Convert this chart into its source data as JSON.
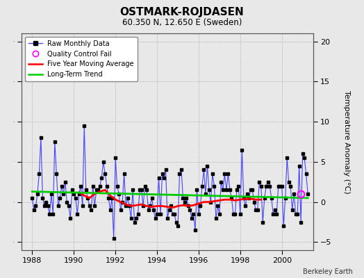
{
  "title": "OSTMARK-ROJDASEN",
  "subtitle": "60.350 N, 12.650 E (Sweden)",
  "ylabel": "Temperature Anomaly (°C)",
  "credit": "Berkeley Earth",
  "ylim": [
    -6,
    21
  ],
  "yticks": [
    -5,
    0,
    5,
    10,
    15,
    20
  ],
  "xlim": [
    1987.5,
    2001.5
  ],
  "xticks": [
    1988,
    1990,
    1992,
    1994,
    1996,
    1998,
    2000
  ],
  "raw_color": "#4444ff",
  "marker_color": "#000000",
  "moving_avg_color": "#ff0000",
  "trend_color": "#00cc00",
  "qc_fail_color": "#ff00ff",
  "background_color": "#e8e8e8",
  "raw_data": {
    "times": [
      1988.0,
      1988.083,
      1988.167,
      1988.25,
      1988.333,
      1988.417,
      1988.5,
      1988.583,
      1988.667,
      1988.75,
      1988.833,
      1988.917,
      1989.0,
      1989.083,
      1989.167,
      1989.25,
      1989.333,
      1989.417,
      1989.5,
      1989.583,
      1989.667,
      1989.75,
      1989.833,
      1989.917,
      1990.0,
      1990.083,
      1990.167,
      1990.25,
      1990.333,
      1990.417,
      1990.5,
      1990.583,
      1990.667,
      1990.75,
      1990.833,
      1990.917,
      1991.0,
      1991.083,
      1991.167,
      1991.25,
      1991.333,
      1991.417,
      1991.5,
      1991.583,
      1991.667,
      1991.75,
      1991.833,
      1991.917,
      1992.0,
      1992.083,
      1992.167,
      1992.25,
      1992.333,
      1992.417,
      1992.5,
      1992.583,
      1992.667,
      1992.75,
      1992.833,
      1992.917,
      1993.0,
      1993.083,
      1993.167,
      1993.25,
      1993.333,
      1993.417,
      1993.5,
      1993.583,
      1993.667,
      1993.75,
      1993.833,
      1993.917,
      1994.0,
      1994.083,
      1994.167,
      1994.25,
      1994.333,
      1994.417,
      1994.5,
      1994.583,
      1994.667,
      1994.75,
      1994.833,
      1994.917,
      1995.0,
      1995.083,
      1995.167,
      1995.25,
      1995.333,
      1995.417,
      1995.5,
      1995.583,
      1995.667,
      1995.75,
      1995.833,
      1995.917,
      1996.0,
      1996.083,
      1996.167,
      1996.25,
      1996.333,
      1996.417,
      1996.5,
      1996.583,
      1996.667,
      1996.75,
      1996.833,
      1996.917,
      1997.0,
      1997.083,
      1997.167,
      1997.25,
      1997.333,
      1997.417,
      1997.5,
      1997.583,
      1997.667,
      1997.75,
      1997.833,
      1997.917,
      1998.0,
      1998.083,
      1998.167,
      1998.25,
      1998.333,
      1998.417,
      1998.5,
      1998.583,
      1998.667,
      1998.75,
      1998.833,
      1998.917,
      1999.0,
      1999.083,
      1999.167,
      1999.25,
      1999.333,
      1999.417,
      1999.5,
      1999.583,
      1999.667,
      1999.75,
      1999.833,
      1999.917,
      2000.0,
      2000.083,
      2000.167,
      2000.25,
      2000.333,
      2000.417,
      2000.5,
      2000.583,
      2000.667,
      2000.75,
      2000.833,
      2000.917,
      2001.0,
      2001.083,
      2001.167,
      2001.25
    ],
    "values": [
      0.5,
      -1.0,
      -0.5,
      1.0,
      3.5,
      8.0,
      0.5,
      -0.5,
      0.0,
      -0.5,
      -1.5,
      1.0,
      -1.5,
      7.5,
      3.5,
      -0.5,
      0.5,
      2.0,
      1.0,
      2.5,
      0.0,
      -0.5,
      -2.0,
      1.5,
      1.0,
      0.5,
      -1.5,
      1.0,
      2.0,
      -0.5,
      9.5,
      1.5,
      0.5,
      -0.5,
      -1.0,
      2.0,
      -0.5,
      1.5,
      1.5,
      2.0,
      3.0,
      5.0,
      3.5,
      2.0,
      0.5,
      -1.0,
      0.5,
      -4.5,
      5.5,
      2.0,
      1.0,
      -1.0,
      0.0,
      3.5,
      -0.5,
      0.5,
      -0.5,
      -2.0,
      1.5,
      -2.5,
      -2.0,
      -1.5,
      1.5,
      1.5,
      -0.5,
      2.0,
      1.5,
      -1.0,
      -0.5,
      0.5,
      -1.0,
      -2.0,
      -1.5,
      3.0,
      -1.5,
      3.5,
      3.0,
      4.0,
      -2.0,
      -1.0,
      -0.5,
      -1.5,
      -1.5,
      -2.5,
      -3.0,
      3.5,
      4.0,
      0.5,
      0.0,
      0.5,
      -0.5,
      -1.0,
      -2.0,
      -1.5,
      -3.5,
      1.5,
      -1.5,
      -0.5,
      2.0,
      4.0,
      1.0,
      4.5,
      1.5,
      0.0,
      3.5,
      2.0,
      -2.0,
      -0.5,
      -1.5,
      2.5,
      1.5,
      3.5,
      1.5,
      3.5,
      1.5,
      0.5,
      -1.5,
      -1.5,
      1.5,
      2.0,
      -1.5,
      6.5,
      0.5,
      -0.5,
      1.0,
      0.5,
      1.5,
      1.5,
      0.0,
      -1.0,
      -1.0,
      2.5,
      2.0,
      -2.5,
      0.5,
      2.0,
      2.5,
      2.0,
      0.5,
      -1.5,
      -1.0,
      -1.5,
      2.0,
      2.0,
      2.0,
      -3.0,
      0.5,
      5.5,
      2.5,
      2.0,
      -1.0,
      1.0,
      -1.5,
      -1.5,
      4.5,
      -2.5,
      6.0,
      5.5,
      3.5,
      1.0
    ]
  },
  "qc_fail": {
    "times": [
      2000.917
    ],
    "values": [
      1.0
    ]
  },
  "moving_avg": {
    "times": [
      1990.25,
      1990.5,
      1990.75,
      1991.0,
      1991.25,
      1991.5,
      1991.75,
      1992.0,
      1992.25,
      1992.5,
      1992.75,
      1993.0,
      1993.25,
      1993.5,
      1993.75,
      1994.0,
      1994.25,
      1994.5,
      1994.75,
      1995.0,
      1995.25,
      1995.5,
      1995.75,
      1996.0,
      1996.25,
      1996.5,
      1996.75,
      1997.0,
      1997.25,
      1997.5,
      1997.75,
      1998.0,
      1998.25,
      1998.5,
      1998.75,
      1999.0
    ],
    "values": [
      1.2,
      0.8,
      0.5,
      1.0,
      1.3,
      1.5,
      0.8,
      0.3,
      0.0,
      -0.3,
      -0.5,
      -0.4,
      -0.3,
      -0.5,
      -0.6,
      -0.5,
      -0.5,
      -0.6,
      -0.7,
      -0.5,
      -0.4,
      -0.5,
      -0.4,
      -0.2,
      0.0,
      0.0,
      0.1,
      0.2,
      0.3,
      0.3,
      0.2,
      0.3,
      0.4,
      0.4,
      0.3,
      0.3
    ]
  },
  "trend": {
    "times": [
      1988.0,
      2001.25
    ],
    "values": [
      1.3,
      0.5
    ]
  }
}
